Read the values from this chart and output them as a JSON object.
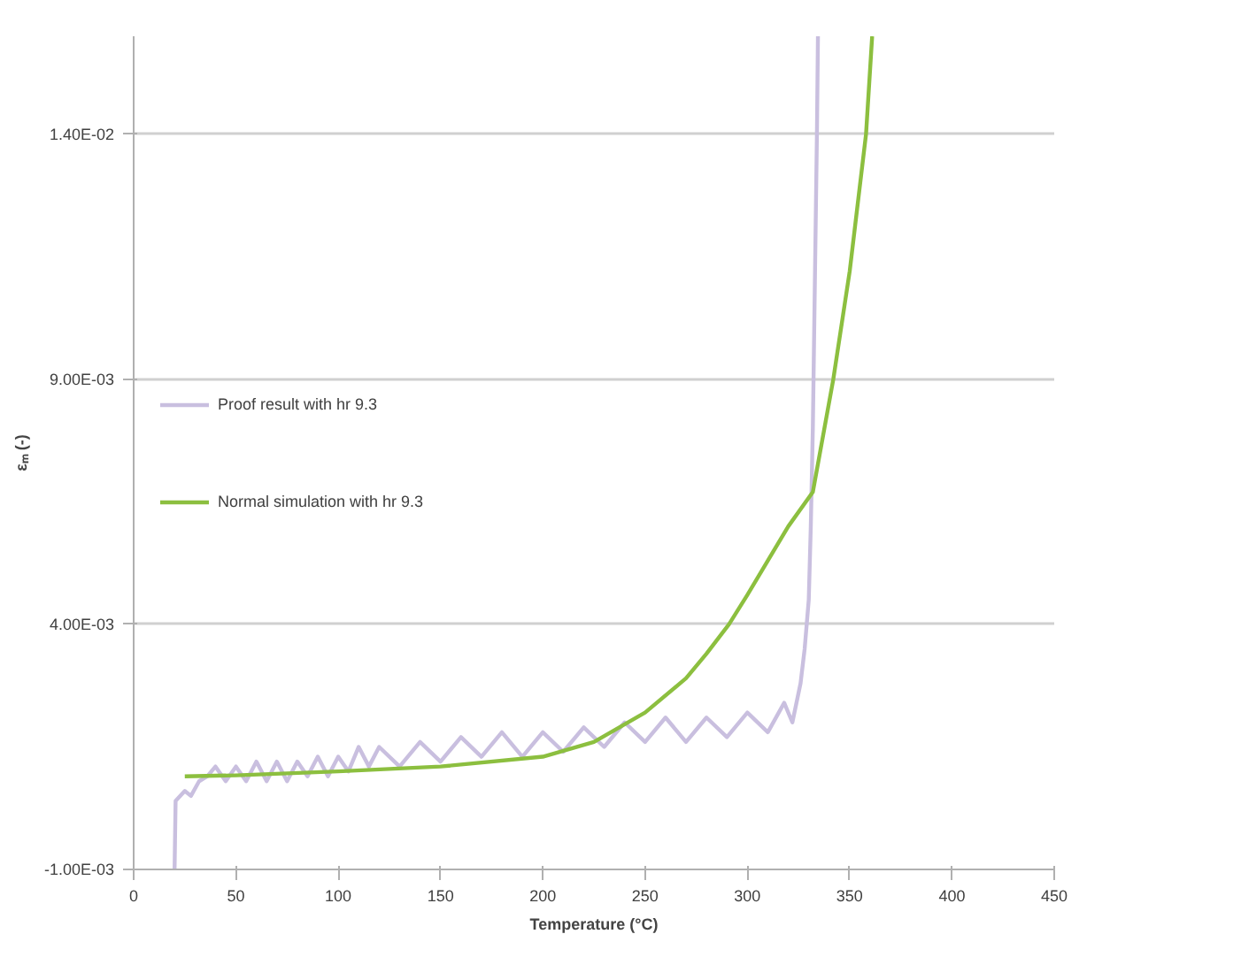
{
  "chart_data": {
    "type": "line",
    "xlabel": "Temperature (°C)",
    "ylabel": "εₘ (-)",
    "xlim": [
      0,
      450
    ],
    "xticks": [
      0,
      50,
      100,
      150,
      200,
      250,
      300,
      350,
      400,
      450
    ],
    "ylim": [
      -0.001,
      0.016
    ],
    "yticks": [
      {
        "value": -0.001,
        "label": "-1.00E-03"
      },
      {
        "value": 0.004,
        "label": "4.00E-03"
      },
      {
        "value": 0.009,
        "label": "9.00E-03"
      },
      {
        "value": 0.014,
        "label": "1.40E-02"
      }
    ],
    "grid": "y",
    "legend": "left",
    "line_style": "solid",
    "marker": "none",
    "series": [
      {
        "name": "Proof result with hr 9.3",
        "color": "#c9bfdf",
        "x": [
          20,
          20.5,
          25,
          28,
          32,
          36,
          40,
          45,
          50,
          55,
          60,
          65,
          70,
          75,
          80,
          85,
          90,
          95,
          100,
          105,
          110,
          115,
          120,
          130,
          140,
          150,
          160,
          170,
          180,
          190,
          200,
          210,
          220,
          230,
          240,
          250,
          260,
          270,
          280,
          290,
          300,
          310,
          318,
          322,
          326,
          328,
          330,
          331,
          332,
          333,
          334,
          334.5
        ],
        "values": [
          -0.001,
          0.0004,
          0.0006,
          0.0005,
          0.0008,
          0.0009,
          0.0011,
          0.0008,
          0.0011,
          0.0008,
          0.0012,
          0.0008,
          0.0012,
          0.0008,
          0.0012,
          0.0009,
          0.0013,
          0.0009,
          0.0013,
          0.001,
          0.0015,
          0.0011,
          0.0015,
          0.0011,
          0.0016,
          0.0012,
          0.0017,
          0.0013,
          0.0018,
          0.0013,
          0.0018,
          0.0014,
          0.0019,
          0.0015,
          0.002,
          0.0016,
          0.0021,
          0.0016,
          0.0021,
          0.0017,
          0.0022,
          0.0018,
          0.0024,
          0.002,
          0.0028,
          0.0035,
          0.0045,
          0.006,
          0.008,
          0.011,
          0.014,
          0.016
        ]
      },
      {
        "name": "Normal simulation with hr 9.3",
        "color": "#8cbf3f",
        "x": [
          25,
          50,
          100,
          150,
          200,
          225,
          250,
          270,
          280,
          291,
          300,
          310,
          320,
          332,
          342,
          350,
          358,
          361
        ],
        "values": [
          0.0009,
          0.00092,
          0.001,
          0.0011,
          0.0013,
          0.0016,
          0.0022,
          0.0029,
          0.0034,
          0.004,
          0.0046,
          0.0053,
          0.006,
          0.0067,
          0.009,
          0.0112,
          0.014,
          0.016
        ]
      }
    ]
  }
}
